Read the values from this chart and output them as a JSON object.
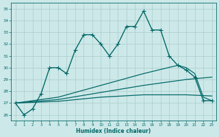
{
  "xlabel": "Humidex (Indice chaleur)",
  "xlim": [
    -0.5,
    23.5
  ],
  "ylim": [
    25.5,
    35.5
  ],
  "yticks": [
    26,
    27,
    28,
    29,
    30,
    31,
    32,
    33,
    34,
    35
  ],
  "xticks": [
    0,
    1,
    2,
    3,
    4,
    5,
    6,
    7,
    8,
    9,
    10,
    11,
    12,
    13,
    14,
    15,
    16,
    17,
    18,
    19,
    20,
    21,
    22,
    23
  ],
  "bg_color": "#cce8e8",
  "grid_color": "#aacccc",
  "line_color": "#006666",
  "series": [
    {
      "x": [
        0,
        1,
        2,
        3,
        4,
        5,
        6,
        7,
        8,
        9,
        10,
        11,
        12,
        13,
        14,
        15,
        16,
        17,
        18,
        19,
        20,
        21,
        22,
        23
      ],
      "y": [
        27.0,
        26.0,
        26.5,
        27.8,
        30.0,
        30.0,
        29.5,
        31.5,
        32.8,
        32.8,
        32.0,
        31.0,
        32.0,
        33.5,
        33.5,
        34.8,
        33.2,
        33.2,
        31.0,
        30.2,
        29.8,
        29.2,
        27.2,
        27.2
      ],
      "marker": "+",
      "markersize": 4,
      "linewidth": 1.0,
      "color": "#006666"
    },
    {
      "x": [
        0,
        5,
        10,
        15,
        19,
        20,
        21,
        22,
        23
      ],
      "y": [
        27.0,
        27.5,
        28.5,
        29.5,
        30.2,
        30.0,
        29.5,
        27.5,
        27.2
      ],
      "marker": null,
      "linewidth": 0.9,
      "color": "#006666"
    },
    {
      "x": [
        0,
        5,
        10,
        15,
        20,
        23
      ],
      "y": [
        27.0,
        27.3,
        27.9,
        28.5,
        29.0,
        29.2
      ],
      "marker": null,
      "linewidth": 0.9,
      "color": "#006666"
    },
    {
      "x": [
        0,
        5,
        10,
        15,
        20,
        23
      ],
      "y": [
        27.0,
        27.15,
        27.5,
        27.7,
        27.7,
        27.6
      ],
      "marker": null,
      "linewidth": 0.9,
      "color": "#006666"
    }
  ]
}
